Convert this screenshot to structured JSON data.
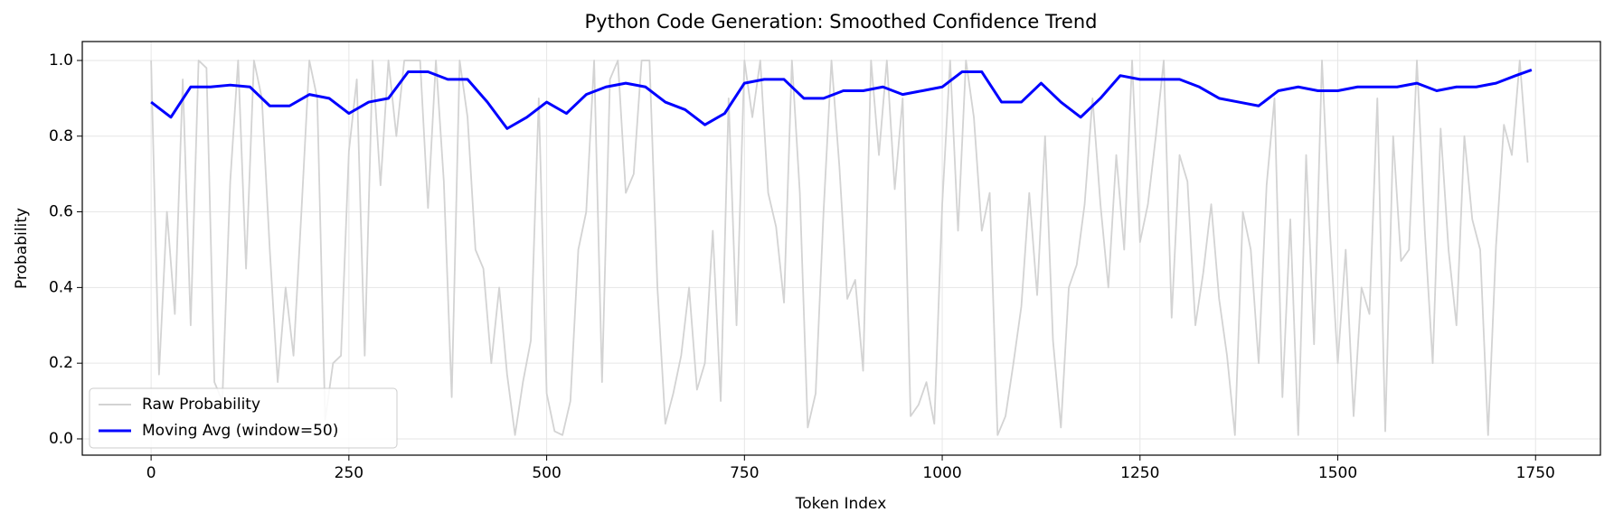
{
  "chart_data": {
    "type": "line",
    "title": "Python Code Generation: Smoothed Confidence Trend",
    "xlabel": "Token Index",
    "ylabel": "Probability",
    "xlim": [
      -87,
      1832
    ],
    "ylim": [
      -0.043,
      1.05
    ],
    "xticks": [
      0,
      250,
      500,
      750,
      1000,
      1250,
      1500,
      1750
    ],
    "yticks": [
      {
        "value": 0,
        "label": "0.0"
      },
      0.2,
      0.4,
      0.6,
      0.8,
      {
        "value": 1,
        "label": "1.0"
      }
    ],
    "grid": true,
    "legend": "lower left",
    "series": [
      {
        "name": "Raw Probability",
        "color": "#d3d3d3",
        "x": [
          0,
          10,
          20,
          30,
          40,
          50,
          60,
          70,
          80,
          90,
          100,
          110,
          120,
          130,
          140,
          150,
          160,
          170,
          180,
          190,
          200,
          210,
          220,
          230,
          240,
          250,
          260,
          270,
          280,
          290,
          300,
          310,
          320,
          330,
          340,
          350,
          360,
          370,
          380,
          390,
          400,
          410,
          420,
          430,
          440,
          450,
          460,
          470,
          480,
          490,
          500,
          510,
          520,
          530,
          540,
          550,
          560,
          570,
          580,
          590,
          600,
          610,
          620,
          630,
          640,
          650,
          660,
          670,
          680,
          690,
          700,
          710,
          720,
          730,
          740,
          750,
          760,
          770,
          780,
          790,
          800,
          810,
          820,
          830,
          840,
          850,
          860,
          870,
          880,
          890,
          900,
          910,
          920,
          930,
          940,
          950,
          960,
          970,
          980,
          990,
          1000,
          1010,
          1020,
          1030,
          1040,
          1050,
          1060,
          1070,
          1080,
          1090,
          1100,
          1110,
          1120,
          1130,
          1140,
          1150,
          1160,
          1170,
          1180,
          1190,
          1200,
          1210,
          1220,
          1230,
          1240,
          1250,
          1260,
          1270,
          1280,
          1290,
          1300,
          1310,
          1320,
          1330,
          1340,
          1350,
          1360,
          1370,
          1380,
          1390,
          1400,
          1410,
          1420,
          1430,
          1440,
          1450,
          1460,
          1470,
          1480,
          1490,
          1500,
          1510,
          1520,
          1530,
          1540,
          1550,
          1560,
          1570,
          1580,
          1590,
          1600,
          1610,
          1620,
          1630,
          1640,
          1650,
          1660,
          1670,
          1680,
          1690,
          1700,
          1710,
          1720,
          1730,
          1740
        ],
        "values": [
          1.0,
          0.17,
          0.6,
          0.33,
          0.95,
          0.3,
          1.0,
          0.98,
          0.15,
          0.1,
          0.68,
          1.0,
          0.45,
          1.0,
          0.9,
          0.5,
          0.15,
          0.4,
          0.22,
          0.6,
          1.0,
          0.9,
          0.05,
          0.2,
          0.22,
          0.76,
          0.95,
          0.22,
          1.0,
          0.67,
          1.0,
          0.8,
          1.0,
          1.0,
          1.0,
          0.61,
          1.0,
          0.68,
          0.11,
          1.0,
          0.85,
          0.5,
          0.45,
          0.2,
          0.4,
          0.17,
          0.01,
          0.15,
          0.26,
          0.9,
          0.12,
          0.02,
          0.01,
          0.1,
          0.5,
          0.6,
          1.0,
          0.15,
          0.95,
          1.0,
          0.65,
          0.7,
          1.0,
          1.0,
          0.4,
          0.04,
          0.12,
          0.22,
          0.4,
          0.13,
          0.2,
          0.55,
          0.1,
          0.9,
          0.3,
          1.0,
          0.85,
          1.0,
          0.65,
          0.56,
          0.36,
          1.0,
          0.65,
          0.03,
          0.12,
          0.6,
          1.0,
          0.72,
          0.37,
          0.42,
          0.18,
          1.0,
          0.75,
          1.0,
          0.66,
          0.9,
          0.06,
          0.09,
          0.15,
          0.04,
          0.62,
          1.0,
          0.55,
          1.0,
          0.85,
          0.55,
          0.65,
          0.01,
          0.06,
          0.2,
          0.35,
          0.65,
          0.38,
          0.8,
          0.26,
          0.03,
          0.4,
          0.46,
          0.62,
          0.9,
          0.62,
          0.4,
          0.75,
          0.5,
          1.0,
          0.52,
          0.62,
          0.8,
          1.0,
          0.32,
          0.75,
          0.68,
          0.3,
          0.44,
          0.62,
          0.37,
          0.22,
          0.01,
          0.6,
          0.5,
          0.2,
          0.67,
          0.9,
          0.11,
          0.58,
          0.01,
          0.75,
          0.25,
          1.0,
          0.55,
          0.2,
          0.5,
          0.06,
          0.4,
          0.33,
          0.9,
          0.02,
          0.8,
          0.47,
          0.5,
          1.0,
          0.55,
          0.2,
          0.82,
          0.5,
          0.3,
          0.8,
          0.58,
          0.5,
          0.01,
          0.51,
          0.83,
          0.75,
          1.0,
          0.73
        ]
      },
      {
        "name": "Moving Avg (window=50)",
        "color": "#0000ff",
        "x": [
          0,
          25,
          50,
          75,
          100,
          125,
          150,
          175,
          200,
          225,
          250,
          275,
          300,
          325,
          350,
          375,
          400,
          425,
          450,
          475,
          500,
          525,
          550,
          575,
          600,
          625,
          650,
          675,
          700,
          725,
          750,
          775,
          800,
          825,
          850,
          875,
          900,
          925,
          950,
          975,
          1000,
          1025,
          1050,
          1075,
          1100,
          1125,
          1150,
          1175,
          1200,
          1225,
          1250,
          1275,
          1300,
          1325,
          1350,
          1375,
          1400,
          1425,
          1450,
          1475,
          1500,
          1525,
          1550,
          1575,
          1600,
          1625,
          1650,
          1675,
          1700,
          1725,
          1745
        ],
        "values": [
          0.89,
          0.85,
          0.93,
          0.93,
          0.935,
          0.93,
          0.88,
          0.88,
          0.91,
          0.9,
          0.86,
          0.89,
          0.9,
          0.97,
          0.97,
          0.95,
          0.95,
          0.89,
          0.82,
          0.85,
          0.89,
          0.86,
          0.91,
          0.93,
          0.94,
          0.93,
          0.89,
          0.87,
          0.83,
          0.86,
          0.94,
          0.95,
          0.95,
          0.9,
          0.9,
          0.92,
          0.92,
          0.93,
          0.91,
          0.92,
          0.93,
          0.97,
          0.97,
          0.89,
          0.89,
          0.94,
          0.89,
          0.85,
          0.9,
          0.96,
          0.95,
          0.95,
          0.95,
          0.93,
          0.9,
          0.89,
          0.88,
          0.92,
          0.93,
          0.92,
          0.92,
          0.93,
          0.93,
          0.93,
          0.94,
          0.92,
          0.93,
          0.93,
          0.94,
          0.96,
          0.975
        ]
      }
    ]
  }
}
